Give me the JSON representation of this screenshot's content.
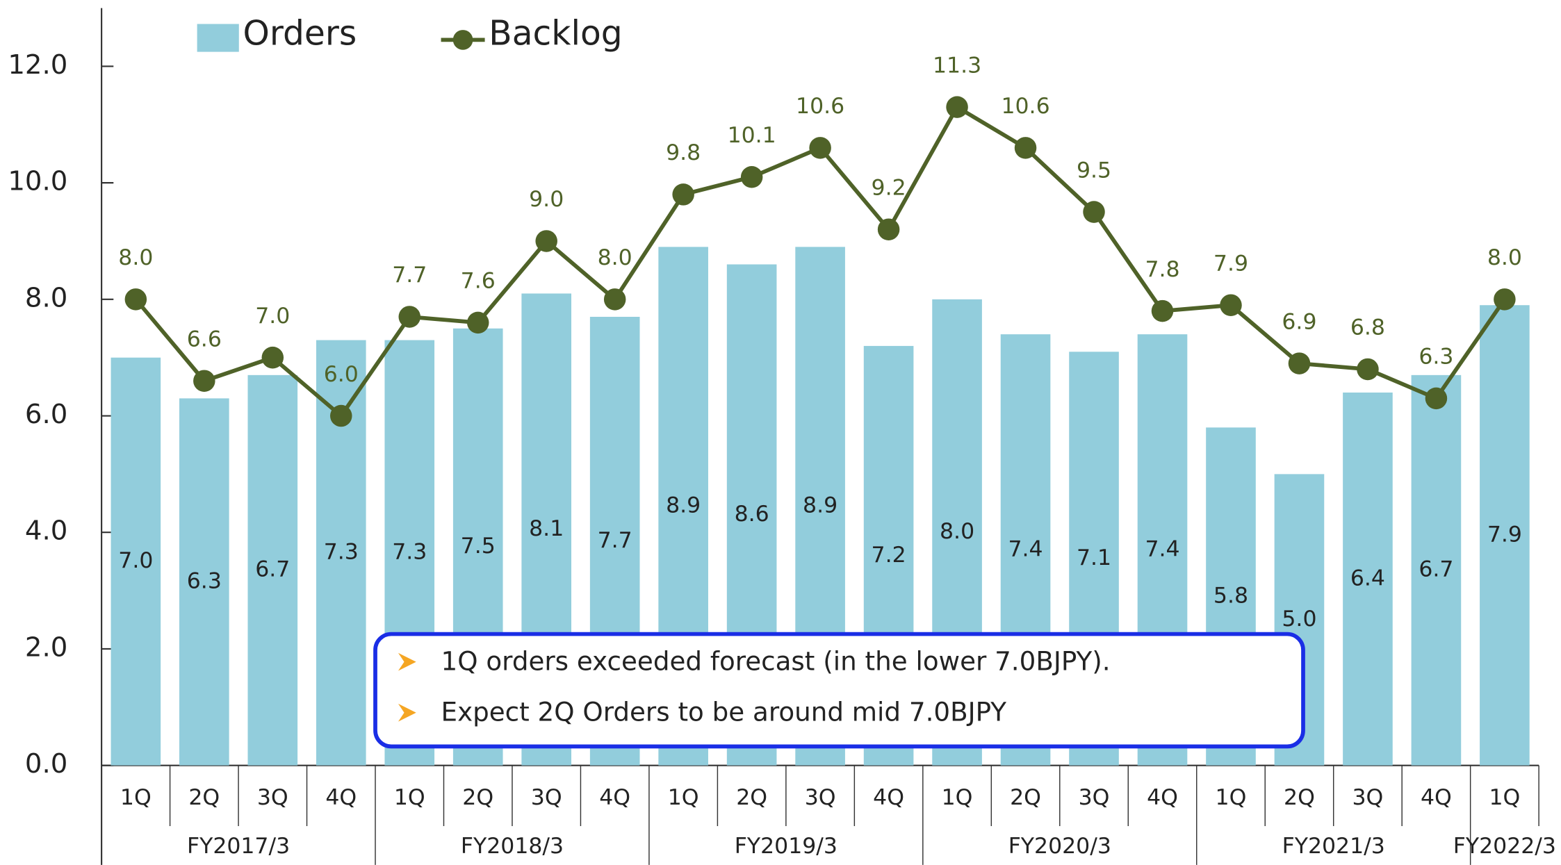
{
  "chart_data": {
    "type": "bar",
    "categories": [
      "1Q",
      "2Q",
      "3Q",
      "4Q",
      "1Q",
      "2Q",
      "3Q",
      "4Q",
      "1Q",
      "2Q",
      "3Q",
      "4Q",
      "1Q",
      "2Q",
      "3Q",
      "4Q",
      "1Q",
      "2Q",
      "3Q",
      "4Q",
      "1Q"
    ],
    "groups": [
      "FY2017/3",
      "FY2018/3",
      "FY2019/3",
      "FY2020/3",
      "FY2021/3",
      "FY2022/3"
    ],
    "series": [
      {
        "name": "Orders",
        "type": "bar",
        "color": "#92cddc",
        "values": [
          7.0,
          6.3,
          6.7,
          7.3,
          7.3,
          7.5,
          8.1,
          7.7,
          8.9,
          8.6,
          8.9,
          7.2,
          8.0,
          7.4,
          7.1,
          7.4,
          5.8,
          5.0,
          6.4,
          6.7,
          7.9
        ],
        "value_labels": [
          "7.0",
          "6.3",
          "6.7",
          "7.3",
          "7.3",
          "7.5",
          "8.1",
          "7.7",
          "8.9",
          "8.6",
          "8.9",
          "7.2",
          "8.0",
          "7.4",
          "7.1",
          "7.4",
          "5.8",
          "5.0",
          "6.4",
          "6.7",
          "7.9"
        ]
      },
      {
        "name": "Backlog",
        "type": "line",
        "color": "#4f6228",
        "values": [
          8.0,
          6.6,
          7.0,
          6.0,
          7.7,
          7.6,
          9.0,
          8.0,
          9.8,
          10.1,
          10.6,
          9.2,
          11.3,
          10.6,
          9.5,
          7.8,
          7.9,
          6.9,
          6.8,
          6.3,
          8.0
        ],
        "value_labels": [
          "8.0",
          "6.6",
          "7.0",
          "6.0",
          "7.7",
          "7.6",
          "9.0",
          "8.0",
          "9.8",
          "10.1",
          "10.6",
          "9.2",
          "11.3",
          "10.6",
          "9.5",
          "7.8",
          "7.9",
          "6.9",
          "6.8",
          "6.3",
          "8.0"
        ]
      }
    ],
    "ylim": [
      0,
      13
    ],
    "yticks": [
      {
        "value": 0,
        "label": "0.0"
      },
      {
        "value": 2,
        "label": "2.0"
      },
      {
        "value": 4,
        "label": "4.0"
      },
      {
        "value": 6,
        "label": "6.0"
      },
      {
        "value": 8,
        "label": "8.0"
      },
      {
        "value": 10,
        "label": "10.0"
      },
      {
        "value": 12,
        "label": "12.0"
      }
    ],
    "annotations": [
      "1Q orders exceeded forecast (in the lower 7.0BJPY).",
      "Expect 2Q Orders to be around mid 7.0BJPY"
    ]
  }
}
